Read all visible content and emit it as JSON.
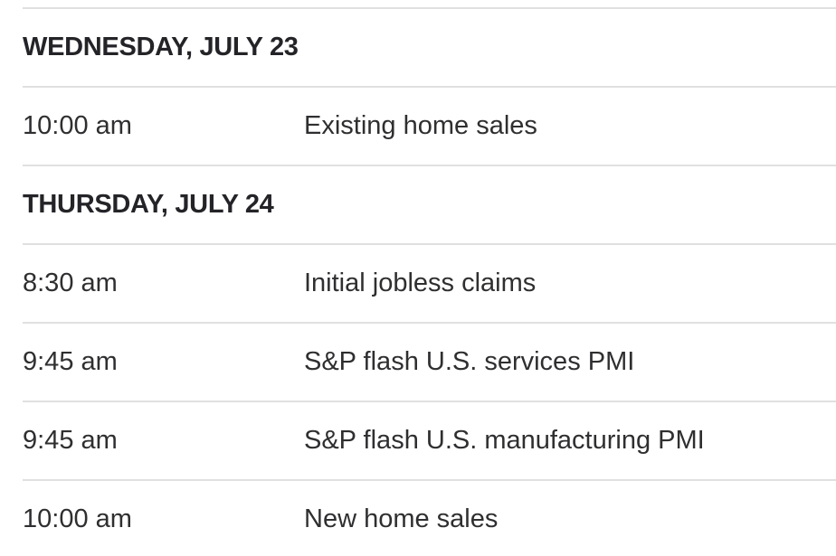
{
  "calendar": {
    "sections": [
      {
        "header": "WEDNESDAY, JULY 23",
        "rows": [
          {
            "time": "10:00 am",
            "event": "Existing home sales"
          }
        ]
      },
      {
        "header": "THURSDAY, JULY 24",
        "rows": [
          {
            "time": "8:30 am",
            "event": "Initial jobless claims"
          },
          {
            "time": "9:45 am",
            "event": "S&P flash U.S. services PMI"
          },
          {
            "time": "9:45 am",
            "event": "S&P flash U.S. manufacturing PMI"
          },
          {
            "time": "10:00 am",
            "event": "New home sales"
          }
        ]
      }
    ],
    "colors": {
      "background": "#ffffff",
      "divider": "#e0e0e0",
      "header_text": "#242428",
      "row_text": "#2f2f31"
    }
  }
}
